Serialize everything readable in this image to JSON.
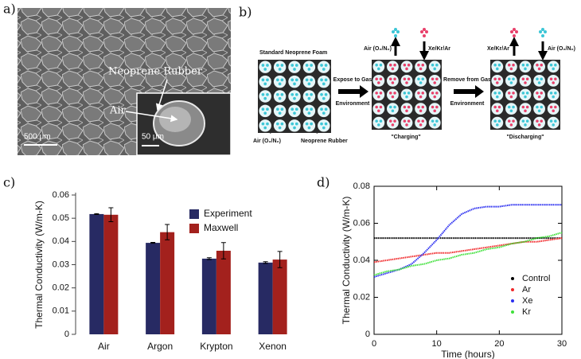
{
  "figure": {
    "panel_labels": [
      "a)",
      "b)",
      "c)",
      "d)"
    ],
    "sem": {
      "labels": [
        "Neoprene Rubber",
        "Air"
      ],
      "scale_bars": [
        "500 μm",
        "50 μm"
      ]
    },
    "diagram": {
      "title": "Standard Neoprene Foam",
      "air_label": "Air (O₂/N₂)",
      "rubber_label": "Neoprene Rubber",
      "expose": [
        "Expose to Gas",
        "Environment"
      ],
      "remove": [
        "Remove from Gas",
        "Environment"
      ],
      "charging_top": [
        "Air (O₂/N₂)",
        "Xe/Kr/Ar"
      ],
      "discharging_top": [
        "Xe/Kr/Ar",
        "Air (O₂/N₂)"
      ],
      "charging": "\"Charging\"",
      "discharging": "\"Discharging\""
    }
  },
  "chart_data": [
    {
      "type": "bar",
      "ylabel": "Thermal Conductivity (W/m-K)",
      "categories": [
        "Air",
        "Argon",
        "Krypton",
        "Xenon"
      ],
      "series": [
        {
          "name": "Experiment",
          "color": "#272a63",
          "values": [
            0.0518,
            0.0394,
            0.0326,
            0.0309
          ],
          "errors": [
            0.0002,
            0.0002,
            0.0004,
            0.0004
          ]
        },
        {
          "name": "Maxwell",
          "color": "#a3211d",
          "values": [
            0.0515,
            0.044,
            0.036,
            0.0322
          ],
          "errors": [
            0.003,
            0.0033,
            0.0035,
            0.0035
          ]
        }
      ],
      "ylim": [
        0,
        0.06
      ],
      "yticks": [
        0,
        0.01,
        0.02,
        0.03,
        0.04,
        0.05,
        0.06
      ],
      "legend": "upper right"
    },
    {
      "type": "line",
      "xlabel": "Time (hours)",
      "ylabel": "Thermal Conductivity (W/m-K)",
      "x": [
        0,
        2,
        4,
        6,
        8,
        10,
        12,
        14,
        16,
        18,
        20,
        22,
        24,
        26,
        28,
        30
      ],
      "series": [
        {
          "name": "Control",
          "color": "#000000",
          "values": [
            0.052,
            0.052,
            0.052,
            0.052,
            0.052,
            0.052,
            0.052,
            0.052,
            0.052,
            0.052,
            0.052,
            0.052,
            0.052,
            0.052,
            0.052,
            0.052
          ]
        },
        {
          "name": "Ar",
          "color": "#f0282a",
          "values": [
            0.039,
            0.04,
            0.041,
            0.042,
            0.043,
            0.044,
            0.044,
            0.045,
            0.046,
            0.047,
            0.048,
            0.049,
            0.05,
            0.05,
            0.051,
            0.052
          ]
        },
        {
          "name": "Xe",
          "color": "#2b2ff0",
          "values": [
            0.031,
            0.033,
            0.035,
            0.038,
            0.044,
            0.051,
            0.059,
            0.065,
            0.068,
            0.069,
            0.069,
            0.07,
            0.07,
            0.07,
            0.07,
            0.07
          ]
        },
        {
          "name": "Kr",
          "color": "#3fe03a",
          "values": [
            0.032,
            0.034,
            0.035,
            0.037,
            0.038,
            0.04,
            0.041,
            0.043,
            0.044,
            0.046,
            0.047,
            0.049,
            0.05,
            0.052,
            0.053,
            0.055
          ]
        }
      ],
      "xlim": [
        0,
        30
      ],
      "ylim": [
        0,
        0.08
      ],
      "xticks": [
        0,
        10,
        20,
        30
      ],
      "yticks": [
        0,
        0.02,
        0.04,
        0.06,
        0.08
      ],
      "legend": "lower right"
    }
  ]
}
